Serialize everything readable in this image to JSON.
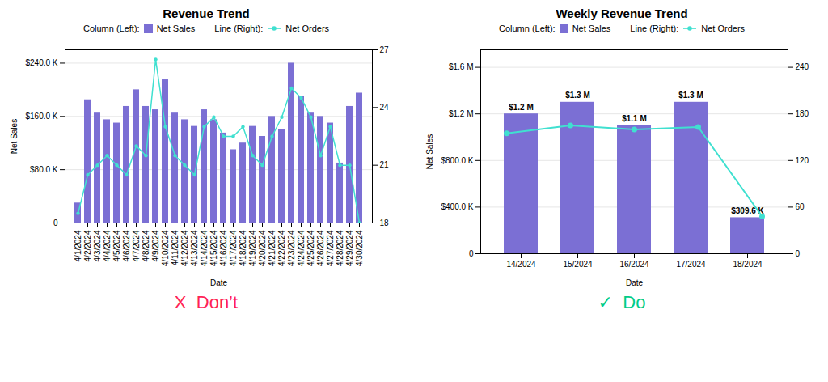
{
  "chart_data": [
    {
      "type": "bar",
      "title": "Revenue Trend",
      "x_label": "Date",
      "y_label": "Net Sales",
      "categories": [
        "4/1/2024",
        "4/2/2024",
        "4/3/2024",
        "4/4/2024",
        "4/5/2024",
        "4/6/2024",
        "4/7/2024",
        "4/8/2024",
        "4/9/2024",
        "4/10/2024",
        "4/11/2024",
        "4/12/2024",
        "4/13/2024",
        "4/14/2024",
        "4/15/2024",
        "4/16/2024",
        "4/17/2024",
        "4/18/2024",
        "4/19/2024",
        "4/20/2024",
        "4/21/2024",
        "4/22/2024",
        "4/23/2024",
        "4/24/2024",
        "4/25/2024",
        "4/26/2024",
        "4/27/2024",
        "4/28/2024",
        "4/29/2024",
        "4/30/2024"
      ],
      "series": [
        {
          "name": "Net Sales",
          "legend_title": "Column (Left):",
          "type": "bar",
          "color": "#7b6fd4",
          "values": [
            30000,
            185000,
            165000,
            155000,
            150000,
            175000,
            200000,
            175000,
            170000,
            215000,
            165000,
            155000,
            145000,
            170000,
            155000,
            135000,
            110000,
            120000,
            145000,
            130000,
            160000,
            140000,
            240000,
            190000,
            165000,
            160000,
            150000,
            90000,
            175000,
            195000
          ]
        },
        {
          "name": "Net Orders",
          "legend_title": "Line (Right):",
          "type": "line",
          "marker": "circle",
          "color": "#40e0d0",
          "axis": "y2",
          "values": [
            18.5,
            20.5,
            21.0,
            21.5,
            21.0,
            20.5,
            22.0,
            21.5,
            26.5,
            23.0,
            21.5,
            21.0,
            20.5,
            23.0,
            23.5,
            22.5,
            22.5,
            23.0,
            21.5,
            21.0,
            22.5,
            23.5,
            25.0,
            24.5,
            23.5,
            21.5,
            23.0,
            21.0,
            21.0,
            18.0
          ]
        }
      ],
      "ylim": [
        0,
        260000
      ],
      "yticks": [
        0,
        {
          "value": 80000,
          "label": "$80.0 K"
        },
        {
          "value": 160000,
          "label": "$160.0 K"
        },
        {
          "value": 240000,
          "label": "$240.0 K"
        }
      ],
      "y2lim": [
        18,
        27
      ],
      "y2ticks": [
        18,
        21,
        24,
        27
      ],
      "grid": true,
      "legend": "top",
      "annotations": [
        {
          "text": "X  Don’t",
          "color": "#ff2255"
        }
      ]
    },
    {
      "type": "bar",
      "title": "Weekly Revenue Trend",
      "x_label": "Date",
      "y_label": "Net Sales",
      "categories": [
        "14/2024",
        "15/2024",
        "16/2024",
        "17/2024",
        "18/2024"
      ],
      "series": [
        {
          "name": "Net Sales",
          "legend_title": "Column (Left):",
          "type": "bar",
          "color": "#7b6fd4",
          "values": [
            1200000,
            1300000,
            1100000,
            1300000,
            309600
          ],
          "data_labels": true,
          "value_labels": [
            "$1.2 M",
            "$1.3 M",
            "$1.1 M",
            "$1.3 M",
            "$309.6 K"
          ]
        },
        {
          "name": "Net Orders",
          "legend_title": "Line (Right):",
          "type": "line",
          "marker": "circle",
          "color": "#40e0d0",
          "axis": "y2",
          "values": [
            155,
            165,
            160,
            163,
            48
          ]
        }
      ],
      "ylim": [
        0,
        1750000
      ],
      "yticks": [
        0,
        {
          "value": 400000,
          "label": "$400.0 K"
        },
        {
          "value": 800000,
          "label": "$800.0 K"
        },
        {
          "value": 1200000,
          "label": "$1.2 M"
        },
        {
          "value": 1600000,
          "label": "$1.6 M"
        }
      ],
      "y2lim": [
        0,
        262.5
      ],
      "y2ticks": [
        0,
        60,
        120,
        180,
        240
      ],
      "grid": true,
      "legend": "top",
      "annotations": [
        {
          "text": "✓  Do",
          "color": "#00cc88"
        }
      ]
    }
  ]
}
